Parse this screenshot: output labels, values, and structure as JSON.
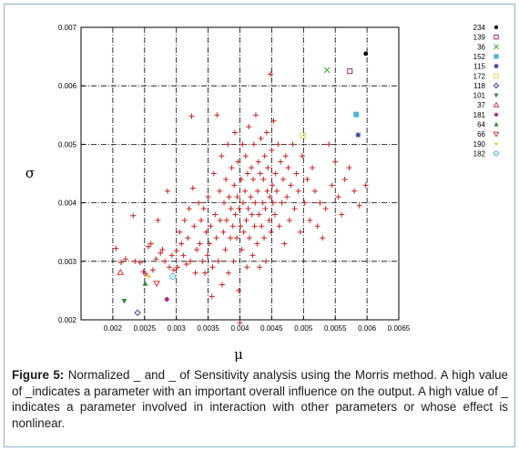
{
  "chart_data": {
    "type": "scatter",
    "xlabel": "μ",
    "ylabel": "σ",
    "xlim": [
      0.0015,
      0.0065
    ],
    "ylim": [
      0.002,
      0.007
    ],
    "x_ticks": [
      "0.002",
      "0.0025",
      "0.003",
      "0.0035",
      "0.004",
      "0.0045",
      "0.005",
      "0.0055",
      "0.006",
      "0.0065"
    ],
    "y_ticks": [
      "0.002",
      "0.003",
      "0.004",
      "0.005",
      "0.006",
      "0.007"
    ],
    "grid": true,
    "legend_position": "outside-right",
    "main_series": {
      "marker": "plus",
      "color": "#cc2222",
      "points": [
        [
          0.004,
          0.00195
        ],
        [
          0.00205,
          0.00322
        ],
        [
          0.00213,
          0.00298
        ],
        [
          0.0022,
          0.00304
        ],
        [
          0.00232,
          0.00378
        ],
        [
          0.00235,
          0.003
        ],
        [
          0.00243,
          0.00298
        ],
        [
          0.00248,
          0.00282
        ],
        [
          0.00252,
          0.00278
        ],
        [
          0.00256,
          0.00325
        ],
        [
          0.0026,
          0.0033
        ],
        [
          0.00263,
          0.00285
        ],
        [
          0.00268,
          0.00304
        ],
        [
          0.00271,
          0.0037
        ],
        [
          0.00275,
          0.00314
        ],
        [
          0.00278,
          0.0032
        ],
        [
          0.00282,
          0.003
        ],
        [
          0.00286,
          0.0042
        ],
        [
          0.00289,
          0.0029
        ],
        [
          0.00293,
          0.0031
        ],
        [
          0.00296,
          0.00285
        ],
        [
          0.003,
          0.00318
        ],
        [
          0.00302,
          0.0029
        ],
        [
          0.00305,
          0.0035
        ],
        [
          0.00308,
          0.0033
        ],
        [
          0.00311,
          0.0031
        ],
        [
          0.00313,
          0.0037
        ],
        [
          0.00316,
          0.00295
        ],
        [
          0.00318,
          0.0034
        ],
        [
          0.0032,
          0.0039
        ],
        [
          0.00322,
          0.003
        ],
        [
          0.00324,
          0.00548
        ],
        [
          0.00326,
          0.00425
        ],
        [
          0.00328,
          0.0036
        ],
        [
          0.0033,
          0.0028
        ],
        [
          0.00332,
          0.0032
        ],
        [
          0.00335,
          0.004
        ],
        [
          0.00337,
          0.0033
        ],
        [
          0.00339,
          0.0037
        ],
        [
          0.00341,
          0.003
        ],
        [
          0.00343,
          0.0039
        ],
        [
          0.00345,
          0.0028
        ],
        [
          0.00347,
          0.0035
        ],
        [
          0.00349,
          0.0031
        ],
        [
          0.0035,
          0.0041
        ],
        [
          0.00352,
          0.0033
        ],
        [
          0.00354,
          0.0036
        ],
        [
          0.00356,
          0.0024
        ],
        [
          0.00357,
          0.0029
        ],
        [
          0.00359,
          0.0045
        ],
        [
          0.00361,
          0.0038
        ],
        [
          0.00363,
          0.0034
        ],
        [
          0.00364,
          0.0055
        ],
        [
          0.00366,
          0.003
        ],
        [
          0.00368,
          0.0042
        ],
        [
          0.00369,
          0.0037
        ],
        [
          0.00371,
          0.0048
        ],
        [
          0.00372,
          0.0026
        ],
        [
          0.00374,
          0.0035
        ],
        [
          0.00375,
          0.004
        ],
        [
          0.00377,
          0.0032
        ],
        [
          0.00378,
          0.0044
        ],
        [
          0.00379,
          0.0037
        ],
        [
          0.00381,
          0.005
        ],
        [
          0.00382,
          0.0028
        ],
        [
          0.00383,
          0.0041
        ],
        [
          0.00385,
          0.0034
        ],
        [
          0.00386,
          0.0039
        ],
        [
          0.00387,
          0.0046
        ],
        [
          0.00389,
          0.0036
        ],
        [
          0.0039,
          0.003
        ],
        [
          0.00391,
          0.0043
        ],
        [
          0.00392,
          0.0052
        ],
        [
          0.00393,
          0.0038
        ],
        [
          0.00395,
          0.0034
        ],
        [
          0.00396,
          0.0041
        ],
        [
          0.00397,
          0.0047
        ],
        [
          0.00398,
          0.0025
        ],
        [
          0.00399,
          0.0039
        ],
        [
          0.00401,
          0.0036
        ],
        [
          0.00402,
          0.0044
        ],
        [
          0.00403,
          0.0032
        ],
        [
          0.00404,
          0.005
        ],
        [
          0.00405,
          0.004
        ],
        [
          0.00406,
          0.0035
        ],
        [
          0.00408,
          0.0042
        ],
        [
          0.00409,
          0.0048
        ],
        [
          0.0041,
          0.0037
        ],
        [
          0.00411,
          0.0029
        ],
        [
          0.00412,
          0.0045
        ],
        [
          0.00413,
          0.0039
        ],
        [
          0.00414,
          0.0053
        ],
        [
          0.00415,
          0.0034
        ],
        [
          0.00417,
          0.0041
        ],
        [
          0.00418,
          0.0046
        ],
        [
          0.00419,
          0.0038
        ],
        [
          0.0042,
          0.0031
        ],
        [
          0.00421,
          0.0044
        ],
        [
          0.00422,
          0.005
        ],
        [
          0.00423,
          0.0036
        ],
        [
          0.00424,
          0.004
        ],
        [
          0.00425,
          0.0055
        ],
        [
          0.00427,
          0.0033
        ],
        [
          0.00428,
          0.0042
        ],
        [
          0.00429,
          0.0047
        ],
        [
          0.0043,
          0.0038
        ],
        [
          0.00431,
          0.0029
        ],
        [
          0.00432,
          0.0045
        ],
        [
          0.00433,
          0.0051
        ],
        [
          0.00434,
          0.0036
        ],
        [
          0.00436,
          0.004
        ],
        [
          0.00437,
          0.0044
        ],
        [
          0.00438,
          0.0034
        ],
        [
          0.00439,
          0.0048
        ],
        [
          0.0044,
          0.0039
        ],
        [
          0.00441,
          0.003
        ],
        [
          0.00442,
          0.0052
        ],
        [
          0.00443,
          0.0042
        ],
        [
          0.00444,
          0.0046
        ],
        [
          0.00446,
          0.0037
        ],
        [
          0.00447,
          0.0041
        ],
        [
          0.00448,
          0.0062
        ],
        [
          0.00449,
          0.0035
        ],
        [
          0.0045,
          0.0049
        ],
        [
          0.00451,
          0.0043
        ],
        [
          0.00452,
          0.004
        ],
        [
          0.00453,
          0.0054
        ],
        [
          0.00455,
          0.0038
        ],
        [
          0.00456,
          0.0045
        ],
        [
          0.00458,
          0.0042
        ],
        [
          0.0046,
          0.005
        ],
        [
          0.00462,
          0.0036
        ],
        [
          0.00464,
          0.0047
        ],
        [
          0.00466,
          0.004
        ],
        [
          0.00468,
          0.0044
        ],
        [
          0.0047,
          0.0033
        ],
        [
          0.00472,
          0.0048
        ],
        [
          0.00474,
          0.0041
        ],
        [
          0.00476,
          0.0046
        ],
        [
          0.00478,
          0.0037
        ],
        [
          0.0048,
          0.0043
        ],
        [
          0.00483,
          0.005
        ],
        [
          0.00486,
          0.0039
        ],
        [
          0.00489,
          0.0045
        ],
        [
          0.00492,
          0.0042
        ],
        [
          0.00495,
          0.0035
        ],
        [
          0.00498,
          0.0048
        ],
        [
          0.00502,
          0.004
        ],
        [
          0.00506,
          0.0044
        ],
        [
          0.0051,
          0.0037
        ],
        [
          0.00514,
          0.0046
        ],
        [
          0.00518,
          0.0042
        ],
        [
          0.00522,
          0.0036
        ],
        [
          0.00526,
          0.004
        ],
        [
          0.0053,
          0.0034
        ],
        [
          0.00535,
          0.0039
        ],
        [
          0.0054,
          0.005
        ],
        [
          0.00545,
          0.0043
        ],
        [
          0.0055,
          0.0047
        ],
        [
          0.00555,
          0.0041
        ],
        [
          0.0056,
          0.0038
        ],
        [
          0.00565,
          0.0044
        ],
        [
          0.00572,
          0.0046
        ],
        [
          0.0058,
          0.0042
        ],
        [
          0.00588,
          0.00395
        ],
        [
          0.00598,
          0.0043
        ]
      ]
    },
    "special_points": [
      {
        "name": "234",
        "x": 0.00598,
        "y": 0.00655,
        "marker": "filled-circle",
        "color": "#000000"
      },
      {
        "name": "139",
        "x": 0.00573,
        "y": 0.00625,
        "marker": "open-square",
        "color": "#aa2288"
      },
      {
        "name": "36",
        "x": 0.00537,
        "y": 0.00627,
        "marker": "x",
        "color": "#33aa33"
      },
      {
        "name": "152",
        "x": 0.00583,
        "y": 0.00551,
        "marker": "filled-square",
        "color": "#4fb4d8"
      },
      {
        "name": "115",
        "x": 0.00586,
        "y": 0.00516,
        "marker": "star",
        "color": "#2a3f9e"
      },
      {
        "name": "172",
        "x": 0.00499,
        "y": 0.00515,
        "marker": "open-square",
        "color": "#e8d040"
      },
      {
        "name": "118",
        "x": 0.00239,
        "y": 0.00212,
        "marker": "open-diamond",
        "color": "#2a3f9e"
      },
      {
        "name": "101",
        "x": 0.00218,
        "y": 0.00232,
        "marker": "filled-triangle-down",
        "color": "#2f8f2f"
      },
      {
        "name": "37",
        "x": 0.00212,
        "y": 0.00281,
        "marker": "open-triangle",
        "color": "#dd3333"
      },
      {
        "name": "181",
        "x": 0.00285,
        "y": 0.00235,
        "marker": "filled-diamond",
        "color": "#aa2288"
      },
      {
        "name": "64",
        "x": 0.00251,
        "y": 0.00262,
        "marker": "filled-triangle",
        "color": "#2f8f2f"
      },
      {
        "name": "66",
        "x": 0.00269,
        "y": 0.00262,
        "marker": "open-triangle-down",
        "color": "#dd3333"
      },
      {
        "name": "190",
        "x": 0.00257,
        "y": 0.00274,
        "marker": "filled-star",
        "color": "#e8d040"
      },
      {
        "name": "182",
        "x": 0.00294,
        "y": 0.00274,
        "marker": "open-circle-dot",
        "color": "#4fb4d8"
      }
    ]
  },
  "caption": {
    "label": "Figure 5:",
    "text": " Normalized _ and _ of Sensitivity analysis using the Morris method. A high value of _indicates a parameter with an important overall influence on the output. A high value of _ indicates a parameter involved in interaction with other parameters or whose effect is nonlinear."
  },
  "colors": {
    "frame_border": "#8ab4c8",
    "grid": "#000000"
  }
}
